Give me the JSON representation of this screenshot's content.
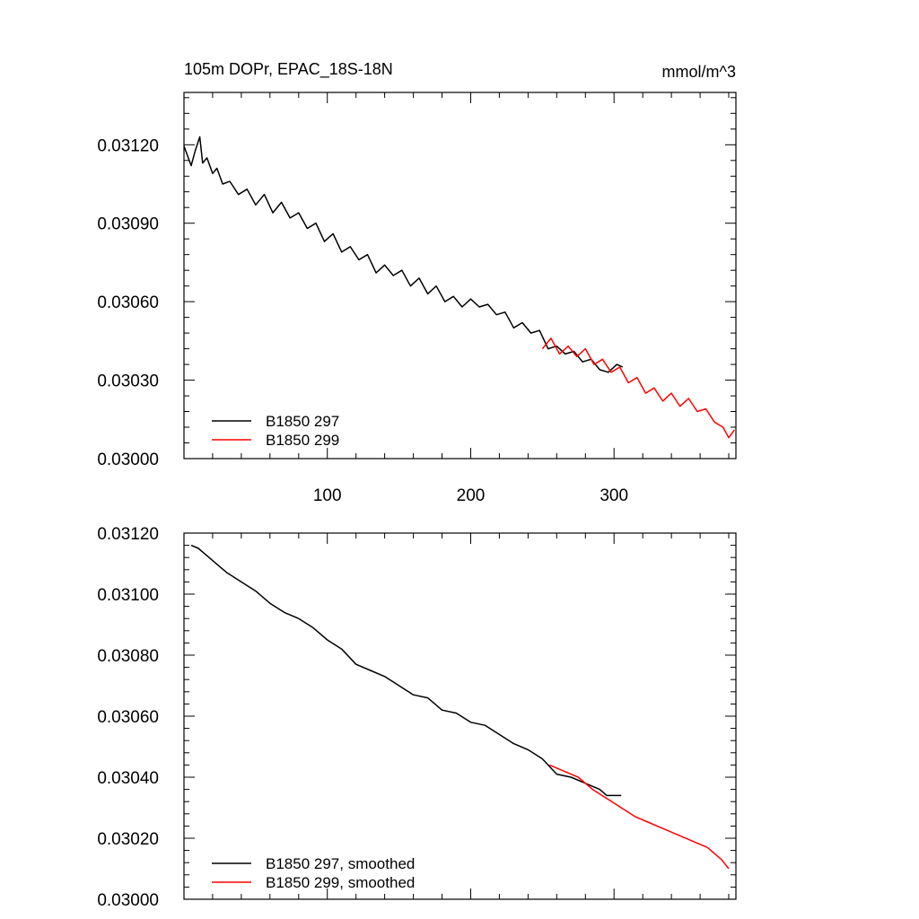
{
  "chart_data": [
    {
      "type": "line",
      "title": "105m DOPr, EPAC_18S-18N",
      "units": "mmol/m^3",
      "xlim": [
        0,
        385
      ],
      "ylim": [
        0.03,
        0.0314
      ],
      "xticks": [
        100,
        200,
        300
      ],
      "xtick_labels": [
        "100",
        "200",
        "300"
      ],
      "yticks": [
        0.03,
        0.0303,
        0.0306,
        0.0309,
        0.0312
      ],
      "ytick_labels": [
        "0.03000",
        "0.03030",
        "0.03060",
        "0.03090",
        "0.03120"
      ],
      "legend_position": "bottom-left",
      "series": [
        {
          "name": "B1850 297",
          "color": "#000000",
          "x": [
            0,
            5,
            8,
            11,
            13,
            16,
            20,
            23,
            27,
            32,
            38,
            44,
            50,
            56,
            62,
            68,
            74,
            80,
            86,
            92,
            98,
            104,
            110,
            116,
            122,
            128,
            134,
            140,
            146,
            152,
            158,
            164,
            170,
            176,
            182,
            188,
            194,
            200,
            206,
            212,
            218,
            224,
            230,
            236,
            242,
            248,
            254,
            260,
            266,
            272,
            278,
            284,
            290,
            296,
            302,
            306
          ],
          "y": [
            0.031195,
            0.03112,
            0.03118,
            0.03123,
            0.03113,
            0.03115,
            0.03109,
            0.03111,
            0.03105,
            0.03106,
            0.03101,
            0.03103,
            0.03097,
            0.03101,
            0.03094,
            0.03098,
            0.03092,
            0.03094,
            0.03088,
            0.0309,
            0.03083,
            0.03086,
            0.03079,
            0.03081,
            0.03076,
            0.03078,
            0.03071,
            0.03074,
            0.0307,
            0.03072,
            0.03066,
            0.03069,
            0.03063,
            0.03066,
            0.0306,
            0.03062,
            0.03058,
            0.03061,
            0.03058,
            0.03059,
            0.03055,
            0.03056,
            0.0305,
            0.03052,
            0.03048,
            0.03049,
            0.03042,
            0.03043,
            0.0304,
            0.03041,
            0.03037,
            0.03038,
            0.03034,
            0.03033,
            0.03036,
            0.03035
          ]
        },
        {
          "name": "B1850 299",
          "color": "#ff0000",
          "x": [
            250,
            256,
            262,
            268,
            274,
            280,
            286,
            292,
            298,
            304,
            310,
            316,
            322,
            328,
            334,
            340,
            346,
            352,
            358,
            364,
            370,
            376,
            380,
            384
          ],
          "y": [
            0.03042,
            0.03046,
            0.0304,
            0.03043,
            0.03039,
            0.03042,
            0.03036,
            0.03038,
            0.03033,
            0.03035,
            0.03029,
            0.03031,
            0.03025,
            0.03027,
            0.03022,
            0.03025,
            0.0302,
            0.03023,
            0.03018,
            0.03019,
            0.03014,
            0.03012,
            0.03008,
            0.03011
          ]
        }
      ]
    },
    {
      "type": "line",
      "title": "",
      "xlim": [
        0,
        385
      ],
      "ylim": [
        0.03,
        0.0312
      ],
      "xticks": [
        100,
        200,
        300
      ],
      "xtick_labels": [],
      "yticks": [
        0.03,
        0.0302,
        0.0304,
        0.0306,
        0.0308,
        0.031,
        0.0312
      ],
      "ytick_labels": [
        "0.03000",
        "0.03020",
        "0.03040",
        "0.03060",
        "0.03080",
        "0.03100",
        "0.03120"
      ],
      "legend_position": "bottom-left",
      "series": [
        {
          "name": "B1850 297, smoothed",
          "color": "#000000",
          "x": [
            5,
            10,
            15,
            20,
            25,
            30,
            40,
            50,
            60,
            70,
            80,
            90,
            100,
            110,
            120,
            130,
            140,
            150,
            160,
            170,
            180,
            190,
            200,
            210,
            220,
            230,
            240,
            250,
            260,
            270,
            280,
            290,
            295,
            300,
            305
          ],
          "y": [
            0.03116,
            0.03115,
            0.03113,
            0.03111,
            0.03109,
            0.03107,
            0.03104,
            0.03101,
            0.03097,
            0.03094,
            0.03092,
            0.03089,
            0.03085,
            0.03082,
            0.03077,
            0.03075,
            0.03073,
            0.0307,
            0.03067,
            0.03066,
            0.03062,
            0.03061,
            0.03058,
            0.03057,
            0.03054,
            0.03051,
            0.03049,
            0.03046,
            0.03041,
            0.0304,
            0.03038,
            0.03036,
            0.03034,
            0.03034,
            0.03034
          ]
        },
        {
          "name": "B1850 299, smoothed",
          "color": "#ff0000",
          "x": [
            255,
            265,
            275,
            285,
            295,
            305,
            315,
            325,
            335,
            345,
            355,
            365,
            375,
            380
          ],
          "y": [
            0.03044,
            0.03042,
            0.0304,
            0.03036,
            0.03033,
            0.0303,
            0.03027,
            0.03025,
            0.03023,
            0.03021,
            0.03019,
            0.03017,
            0.03013,
            0.0301
          ]
        }
      ]
    }
  ]
}
